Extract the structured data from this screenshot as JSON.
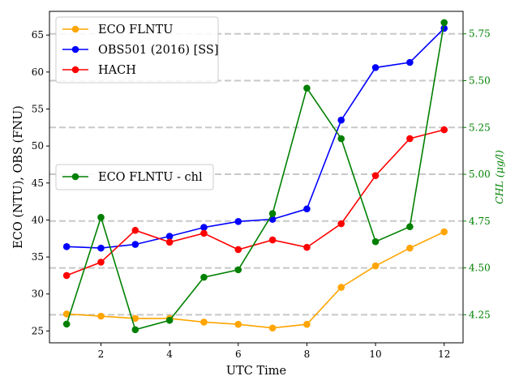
{
  "chart_data": {
    "type": "line",
    "xlabel": "UTC Time",
    "ylabel_left": "ECO (NTU), OBS (FNU)",
    "ylabel_right": "CHL (μg/l)",
    "x": [
      1,
      2,
      3,
      4,
      5,
      6,
      7,
      8,
      9,
      10,
      11,
      12
    ],
    "xlim": [
      0.5,
      12.55
    ],
    "ylim_left": [
      23.4,
      68.2
    ],
    "ylim_right": [
      4.1,
      5.87
    ],
    "x_ticks": [
      2,
      4,
      6,
      8,
      10,
      12
    ],
    "y_ticks_left": [
      25,
      30,
      35,
      40,
      45,
      50,
      55,
      60,
      65
    ],
    "y_ticks_right": [
      4.25,
      4.5,
      4.75,
      5.0,
      5.25,
      5.5,
      5.75
    ],
    "y_ticks_right_labels": [
      "4.25",
      "4.50",
      "4.75",
      "5.00",
      "5.25",
      "5.50",
      "5.75"
    ],
    "grid": "horizontal dashed gray lines at right-axis ticks",
    "series": [
      {
        "name": "ECO FLNTU",
        "axis": "left",
        "color": "#ffa500",
        "values": [
          27.3,
          27.0,
          26.7,
          26.7,
          26.2,
          25.9,
          25.4,
          25.9,
          30.9,
          33.8,
          36.2,
          38.4
        ]
      },
      {
        "name": "OBS501 (2016) [SS]",
        "axis": "left",
        "color": "#0000ff",
        "values": [
          36.4,
          36.2,
          36.7,
          37.8,
          39.0,
          39.8,
          40.1,
          41.5,
          53.5,
          60.6,
          61.3,
          65.9
        ]
      },
      {
        "name": "HACH",
        "axis": "left",
        "color": "#ff0000",
        "values": [
          32.5,
          34.3,
          38.6,
          37.0,
          38.2,
          36.0,
          37.3,
          36.3,
          39.5,
          46.0,
          51.0,
          52.2
        ]
      },
      {
        "name": "ECO FLNTU - chl",
        "axis": "right",
        "color": "#008000",
        "values": [
          4.2,
          4.77,
          4.17,
          4.22,
          4.45,
          4.49,
          4.79,
          5.46,
          5.19,
          4.64,
          4.72,
          5.81
        ]
      }
    ],
    "legend_left_axis": "upper left",
    "legend_right_axis": "center left"
  }
}
